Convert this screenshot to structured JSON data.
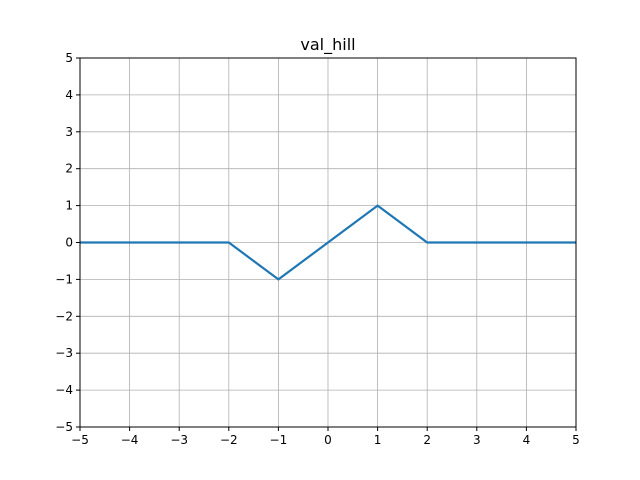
{
  "chart_data": {
    "type": "line",
    "title": "val_hill",
    "xlabel": "",
    "ylabel": "",
    "xlim": [
      -5,
      5
    ],
    "ylim": [
      -5,
      5
    ],
    "grid": true,
    "x_ticks": [
      -5,
      -4,
      -3,
      -2,
      -1,
      0,
      1,
      2,
      3,
      4,
      5
    ],
    "y_ticks": [
      -5,
      -4,
      -3,
      -2,
      -1,
      0,
      1,
      2,
      3,
      4,
      5
    ],
    "x_tick_labels": [
      "−5",
      "−4",
      "−3",
      "−2",
      "−1",
      "0",
      "1",
      "2",
      "3",
      "4",
      "5"
    ],
    "y_tick_labels": [
      "−5",
      "−4",
      "−3",
      "−2",
      "−1",
      "0",
      "1",
      "2",
      "3",
      "4",
      "5"
    ],
    "series": [
      {
        "color": "#1f77b4",
        "x": [
          -5,
          -2,
          -1,
          1,
          2,
          5
        ],
        "y": [
          0,
          0,
          -1,
          1,
          0,
          0
        ]
      }
    ]
  }
}
